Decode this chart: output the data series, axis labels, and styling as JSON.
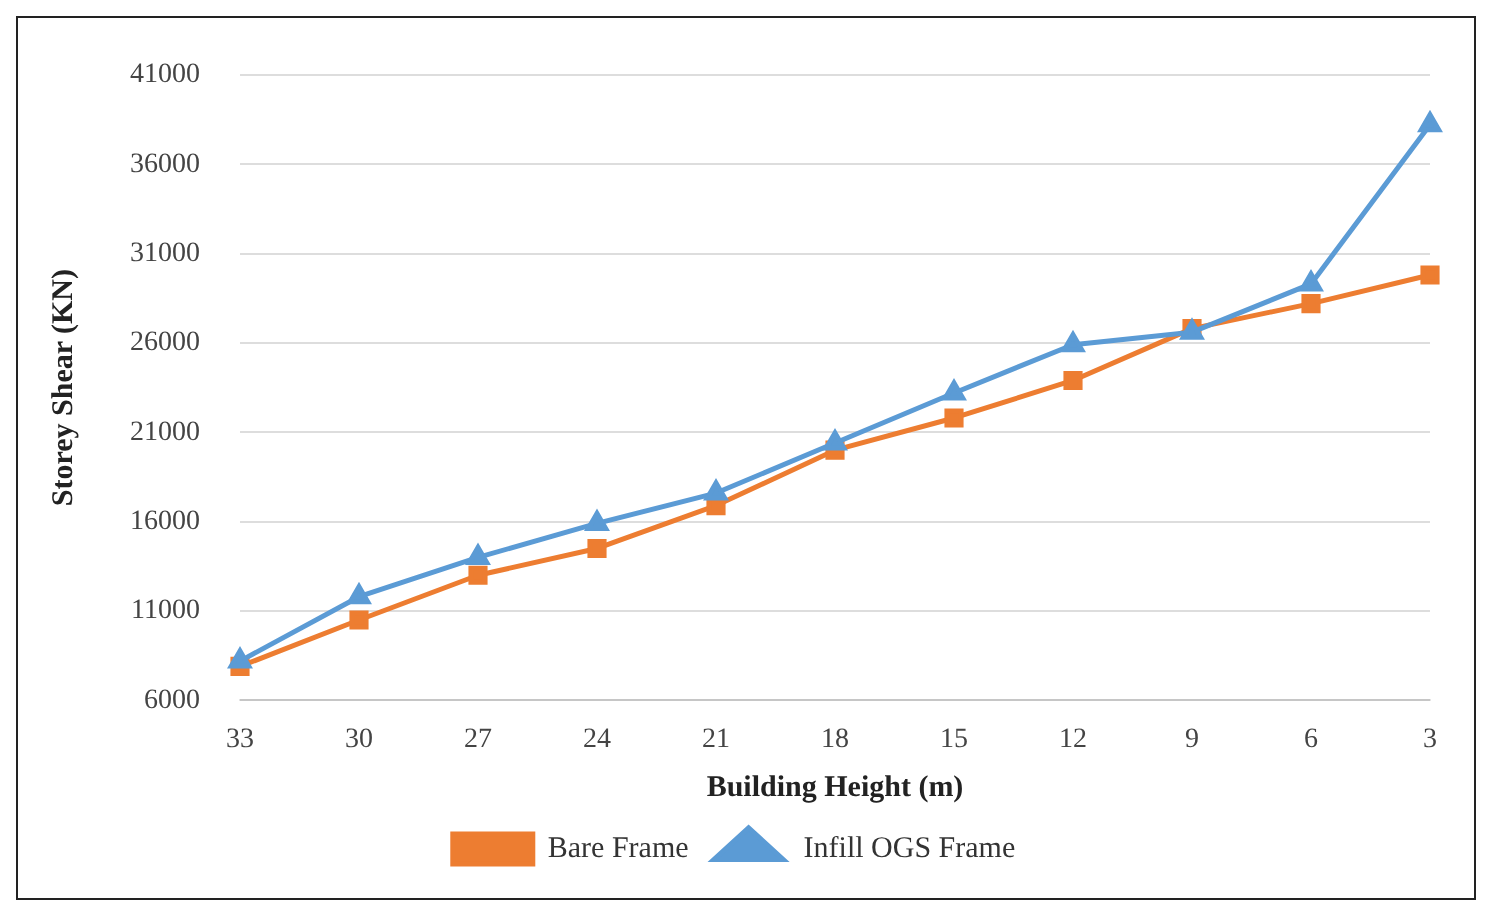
{
  "chart_data": {
    "type": "line",
    "xlabel": "Building Height (m)",
    "ylabel": "Storey Shear (KN)",
    "categories": [
      "33",
      "30",
      "27",
      "24",
      "21",
      "18",
      "15",
      "12",
      "9",
      "6",
      "3"
    ],
    "series": [
      {
        "name": "Bare Frame",
        "color": "#ed7d31",
        "marker": "square",
        "values": [
          7900,
          10500,
          13000,
          14500,
          16900,
          20000,
          21800,
          23900,
          26800,
          28200,
          29800
        ]
      },
      {
        "name": "Infill OGS Frame",
        "color": "#5b9bd5",
        "marker": "triangle",
        "values": [
          8200,
          11800,
          14000,
          15900,
          17600,
          20400,
          23200,
          25900,
          26600,
          29300,
          38200
        ]
      }
    ],
    "ylim": [
      6000,
      41000
    ],
    "yticks": [
      6000,
      11000,
      16000,
      21000,
      26000,
      31000,
      36000,
      41000
    ],
    "grid": "y",
    "legend": "bottom"
  }
}
